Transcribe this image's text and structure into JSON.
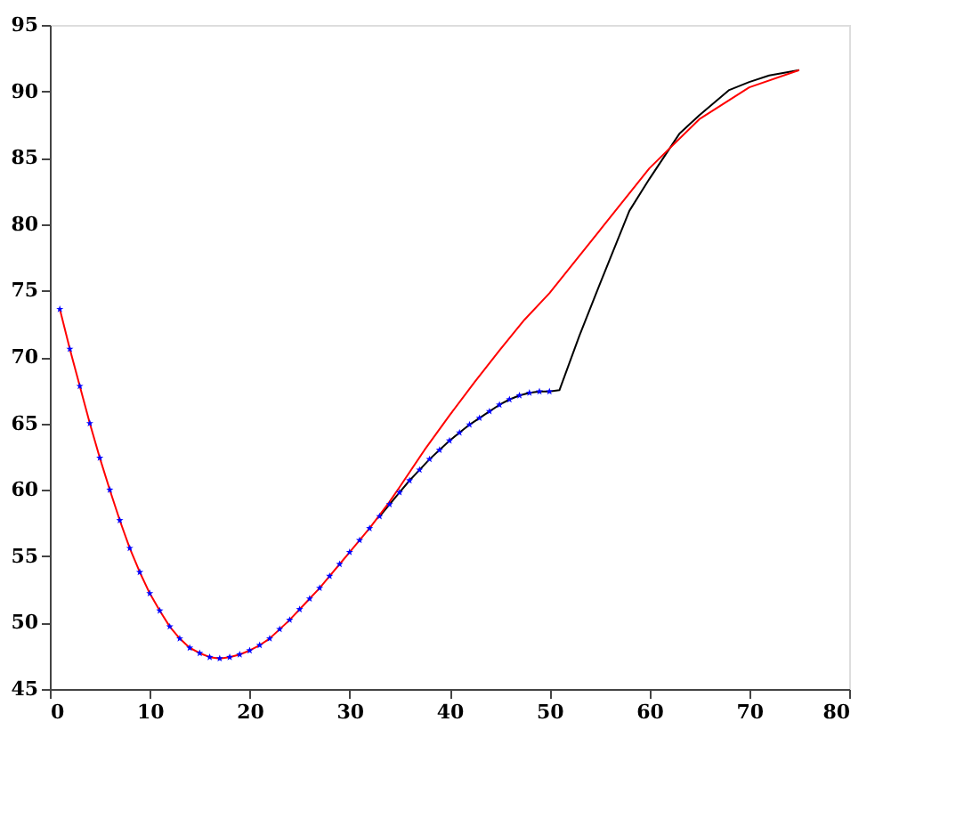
{
  "chart_data": {
    "type": "line",
    "xlim": [
      0,
      80
    ],
    "xticks": [
      0,
      10,
      20,
      30,
      40,
      50,
      60,
      70,
      80
    ],
    "ylim": [
      45,
      95
    ],
    "yticks": [
      45,
      50,
      55,
      60,
      65,
      70,
      75,
      80,
      85,
      90,
      95
    ],
    "grid": false,
    "series": [
      {
        "color": "#000000",
        "line_style": "solid",
        "x": [
          33,
          34,
          35,
          36,
          37,
          38,
          39,
          40,
          41,
          42,
          43,
          44,
          45,
          46,
          47,
          48,
          49,
          50,
          51,
          53,
          55,
          58,
          60,
          63,
          65,
          68,
          70,
          72,
          75
        ],
        "values": [
          58.0,
          58.9,
          59.8,
          60.7,
          61.5,
          62.3,
          63.0,
          63.7,
          64.3,
          64.9,
          65.4,
          65.9,
          66.4,
          66.8,
          67.1,
          67.3,
          67.4,
          67.4,
          67.5,
          71.6,
          75.4,
          81.0,
          83.4,
          86.8,
          88.2,
          90.1,
          90.7,
          91.2,
          91.6
        ]
      },
      {
        "color": "#ff0000",
        "line_style": "solid",
        "x": [
          1,
          2,
          3,
          4,
          5,
          6,
          7,
          8,
          9,
          10,
          11,
          12,
          13,
          14,
          15,
          16,
          17,
          18,
          19,
          20,
          21,
          22,
          23,
          24,
          25,
          26,
          27,
          28,
          29,
          30,
          31,
          32,
          33,
          34,
          35,
          37.5,
          40,
          42.5,
          45,
          47.5,
          50,
          55,
          60,
          65,
          70,
          75
        ],
        "values": [
          73.6,
          70.6,
          67.8,
          65.0,
          62.4,
          60.0,
          57.7,
          55.6,
          53.8,
          52.2,
          50.9,
          49.7,
          48.8,
          48.1,
          47.7,
          47.4,
          47.3,
          47.4,
          47.6,
          47.9,
          48.3,
          48.8,
          49.5,
          50.2,
          51.0,
          51.8,
          52.6,
          53.5,
          54.4,
          55.3,
          56.2,
          57.1,
          58.1,
          59.1,
          60.2,
          63.0,
          65.6,
          68.1,
          70.5,
          72.8,
          74.8,
          79.5,
          84.2,
          87.9,
          90.3,
          91.6
        ]
      },
      {
        "color": "#0000ff",
        "type": "scatter",
        "marker": "star",
        "x": [
          1,
          2,
          3,
          4,
          5,
          6,
          7,
          8,
          9,
          10,
          11,
          12,
          13,
          14,
          15,
          16,
          17,
          18,
          19,
          20,
          21,
          22,
          23,
          24,
          25,
          26,
          27,
          28,
          29,
          30,
          31,
          32,
          33,
          34,
          35,
          36,
          37,
          38,
          39,
          40,
          41,
          42,
          43,
          44,
          45,
          46,
          47,
          48,
          49,
          50
        ],
        "values": [
          73.6,
          70.6,
          67.8,
          65.0,
          62.4,
          60.0,
          57.7,
          55.6,
          53.8,
          52.2,
          50.9,
          49.7,
          48.8,
          48.1,
          47.7,
          47.4,
          47.3,
          47.4,
          47.6,
          47.9,
          48.3,
          48.8,
          49.5,
          50.2,
          51.0,
          51.8,
          52.6,
          53.5,
          54.4,
          55.3,
          56.2,
          57.1,
          58.0,
          58.9,
          59.8,
          60.7,
          61.5,
          62.3,
          63.0,
          63.7,
          64.3,
          64.9,
          65.4,
          65.9,
          66.4,
          66.8,
          67.1,
          67.3,
          67.4,
          67.4
        ]
      }
    ]
  }
}
